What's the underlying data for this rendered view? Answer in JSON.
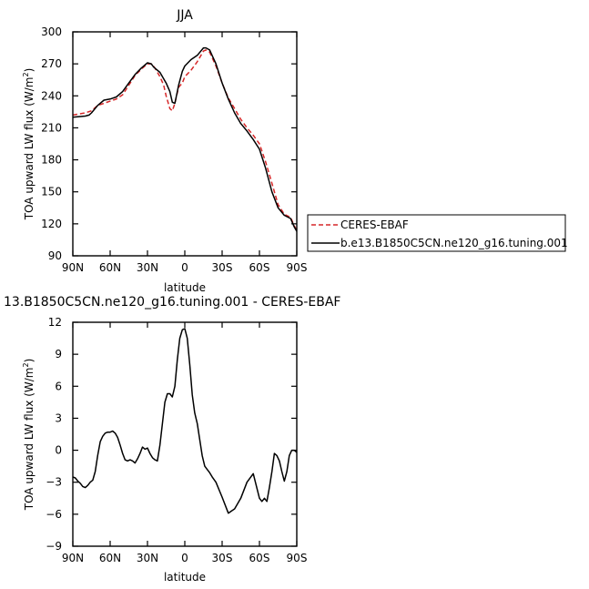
{
  "colors": {
    "model": "#000000",
    "observation": "#d62728"
  },
  "chart_data": [
    {
      "type": "line",
      "title": "JJA",
      "xlabel": "latitude",
      "ylabel": "TOA upward LW flux (W/m",
      "ylabel_sup": "2",
      "ylabel_close": ")",
      "xlim": [
        -90,
        90
      ],
      "ylim": [
        90,
        300
      ],
      "xticks": [
        -90,
        -60,
        -30,
        0,
        30,
        60,
        90
      ],
      "xtick_labels": [
        "90N",
        "60N",
        "30N",
        "0",
        "30S",
        "60S",
        "90S"
      ],
      "yticks": [
        90,
        120,
        150,
        180,
        210,
        240,
        270,
        300
      ],
      "ytick_labels": [
        "90",
        "120",
        "150",
        "180",
        "210",
        "240",
        "270",
        "300"
      ],
      "legend": {
        "placement": "right, outside plot"
      },
      "series": [
        {
          "name": "CERES-EBAF",
          "style": "dashed",
          "color": "#d62728",
          "x": [
            -90,
            -80,
            -75,
            -70,
            -65,
            -60,
            -55,
            -50,
            -45,
            -40,
            -35,
            -30,
            -27,
            -25,
            -20,
            -17,
            -15,
            -12,
            -10,
            -8,
            -5,
            -2,
            0,
            5,
            10,
            15,
            17,
            20,
            25,
            30,
            35,
            40,
            45,
            50,
            55,
            60,
            65,
            70,
            75,
            80,
            85,
            88,
            90
          ],
          "y": [
            222,
            224,
            226,
            231,
            233,
            235,
            237,
            241,
            250,
            259,
            265,
            270,
            270,
            268,
            258,
            250,
            240,
            228,
            226,
            233,
            248,
            252,
            258,
            264,
            272,
            282,
            283,
            281,
            268,
            252,
            238,
            228,
            218,
            210,
            203,
            195,
            178,
            158,
            138,
            129,
            126,
            118,
            114
          ]
        },
        {
          "name": "b.e13.B1850C5CN.ne120_g16.tuning.001",
          "style": "solid",
          "color": "#000000",
          "x": [
            -90,
            -80,
            -77,
            -75,
            -70,
            -65,
            -60,
            -55,
            -50,
            -45,
            -40,
            -35,
            -30,
            -27,
            -25,
            -20,
            -15,
            -12,
            -10,
            -8,
            -5,
            -2,
            0,
            5,
            10,
            15,
            17,
            20,
            25,
            30,
            35,
            40,
            45,
            50,
            55,
            60,
            65,
            70,
            75,
            80,
            85,
            88,
            90
          ],
          "y": [
            220,
            221,
            222,
            224,
            231,
            236,
            237,
            239,
            244,
            252,
            260,
            266,
            271,
            270,
            267,
            262,
            252,
            244,
            234,
            233,
            250,
            263,
            268,
            274,
            278,
            285,
            285,
            283,
            270,
            252,
            237,
            224,
            214,
            207,
            199,
            190,
            172,
            150,
            135,
            128,
            125,
            117,
            113
          ]
        }
      ]
    },
    {
      "type": "line",
      "title": "13.B1850C5CN.ne120_g16.tuning.001 - CERES-EBAF",
      "xlabel": "latitude",
      "ylabel": "TOA upward LW flux (W/m",
      "ylabel_sup": "2",
      "ylabel_close": ")",
      "xlim": [
        -90,
        90
      ],
      "ylim": [
        -9,
        12
      ],
      "xticks": [
        -90,
        -60,
        -30,
        0,
        30,
        60,
        90
      ],
      "xtick_labels": [
        "90N",
        "60N",
        "30N",
        "0",
        "30S",
        "60S",
        "90S"
      ],
      "yticks": [
        -9,
        -6,
        -3,
        0,
        3,
        6,
        9,
        12
      ],
      "ytick_labels": [
        "−9",
        "−6",
        "−3",
        "0",
        "3",
        "6",
        "9",
        "12"
      ],
      "series": [
        {
          "style": "solid",
          "color": "#000000",
          "x": [
            -90,
            -88,
            -86,
            -84,
            -82,
            -80,
            -78,
            -76,
            -74,
            -72,
            -70,
            -68,
            -66,
            -64,
            -62,
            -60,
            -58,
            -56,
            -54,
            -52,
            -50,
            -48,
            -46,
            -44,
            -42,
            -40,
            -38,
            -36,
            -34,
            -32,
            -30,
            -28,
            -26,
            -24,
            -22,
            -20,
            -18,
            -16,
            -14,
            -12,
            -10,
            -8,
            -6,
            -4,
            -2,
            0,
            2,
            4,
            6,
            8,
            10,
            12,
            14,
            16,
            18,
            20,
            22,
            25,
            30,
            35,
            40,
            45,
            50,
            55,
            60,
            62,
            64,
            66,
            68,
            70,
            72,
            74,
            76,
            78,
            80,
            82,
            84,
            86,
            88,
            90
          ],
          "y": [
            -2.5,
            -2.6,
            -2.9,
            -3.1,
            -3.4,
            -3.5,
            -3.3,
            -3.0,
            -2.8,
            -2.0,
            -0.5,
            0.8,
            1.3,
            1.6,
            1.7,
            1.7,
            1.8,
            1.6,
            1.2,
            0.5,
            -0.3,
            -0.9,
            -1.0,
            -0.9,
            -1.0,
            -1.2,
            -0.8,
            -0.3,
            0.3,
            0.1,
            0.2,
            -0.3,
            -0.7,
            -0.9,
            -1.0,
            0.5,
            2.5,
            4.5,
            5.3,
            5.3,
            5.0,
            6.0,
            8.5,
            10.5,
            11.3,
            11.4,
            10.5,
            8.0,
            5.2,
            3.5,
            2.5,
            1.0,
            -0.5,
            -1.5,
            -1.8,
            -2.1,
            -2.5,
            -3.0,
            -4.4,
            -5.9,
            -5.5,
            -4.5,
            -3.0,
            -2.2,
            -4.5,
            -4.8,
            -4.5,
            -4.8,
            -3.5,
            -2.0,
            -0.3,
            -0.5,
            -1.0,
            -2.0,
            -2.9,
            -2.0,
            -0.5,
            0.0,
            0.0,
            -0.2
          ]
        }
      ]
    }
  ]
}
